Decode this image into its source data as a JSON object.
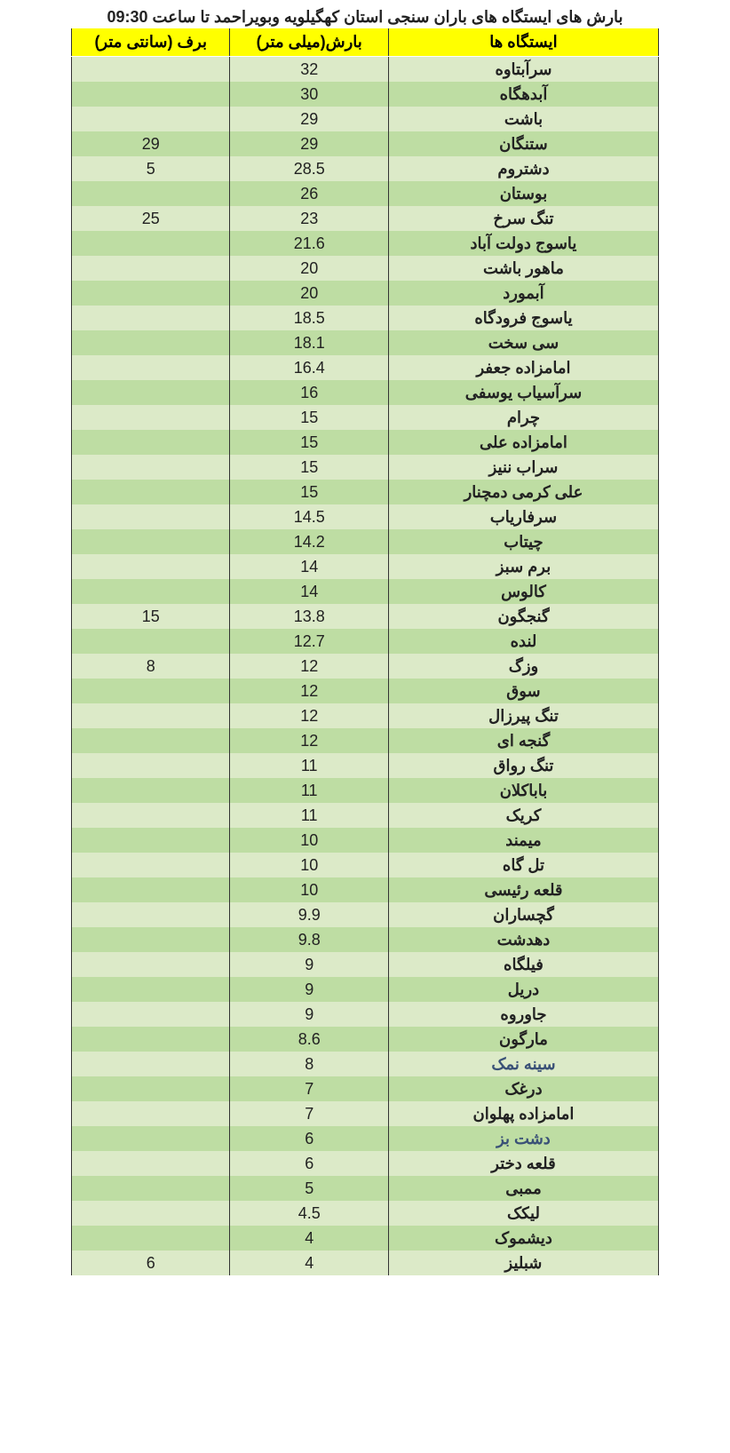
{
  "title": "بارش های ایستگاه های باران سنجی استان کهگیلویه وبویراحمد تا ساعت 09:30",
  "columns": {
    "station": "ایستگاه ها",
    "rain": "بارش(میلی متر)",
    "snow": "برف (سانتی متر)"
  },
  "style": {
    "header_bg": "#ffff00",
    "row_odd_bg": "#dceac8",
    "row_even_bg": "#bedda3",
    "border_color": "#333333",
    "text_color": "#222222",
    "muted_color": "#3a5177",
    "font_size": 18,
    "col_widths_pct": [
      46,
      27,
      27
    ]
  },
  "rows": [
    {
      "station": "سرآبتاوه",
      "rain": "32",
      "snow": ""
    },
    {
      "station": "آبدهگاه",
      "rain": "30",
      "snow": ""
    },
    {
      "station": "باشت",
      "rain": "29",
      "snow": ""
    },
    {
      "station": "ستنگان",
      "rain": "29",
      "snow": "29"
    },
    {
      "station": "دشتروم",
      "rain": "28.5",
      "snow": "5"
    },
    {
      "station": "بوستان",
      "rain": "26",
      "snow": ""
    },
    {
      "station": "تنگ سرخ",
      "rain": "23",
      "snow": "25"
    },
    {
      "station": "یاسوج دولت آباد",
      "rain": "21.6",
      "snow": ""
    },
    {
      "station": "ماهور باشت",
      "rain": "20",
      "snow": ""
    },
    {
      "station": "آبمورد",
      "rain": "20",
      "snow": ""
    },
    {
      "station": "یاسوج فرودگاه",
      "rain": "18.5",
      "snow": ""
    },
    {
      "station": "سی سخت",
      "rain": "18.1",
      "snow": ""
    },
    {
      "station": "امامزاده جعفر",
      "rain": "16.4",
      "snow": ""
    },
    {
      "station": "سرآسیاب یوسفی",
      "rain": "16",
      "snow": ""
    },
    {
      "station": "چرام",
      "rain": "15",
      "snow": ""
    },
    {
      "station": "امامزاده علی",
      "rain": "15",
      "snow": ""
    },
    {
      "station": "سراب ننیز",
      "rain": "15",
      "snow": ""
    },
    {
      "station": "علی کرمی دمچنار",
      "rain": "15",
      "snow": ""
    },
    {
      "station": "سرفاریاب",
      "rain": "14.5",
      "snow": ""
    },
    {
      "station": "چیتاب",
      "rain": "14.2",
      "snow": ""
    },
    {
      "station": "برم سبز",
      "rain": "14",
      "snow": ""
    },
    {
      "station": "کالوس",
      "rain": "14",
      "snow": ""
    },
    {
      "station": "گنجگون",
      "rain": "13.8",
      "snow": "15"
    },
    {
      "station": "لنده",
      "rain": "12.7",
      "snow": ""
    },
    {
      "station": "وزگ",
      "rain": "12",
      "snow": "8"
    },
    {
      "station": "سوق",
      "rain": "12",
      "snow": ""
    },
    {
      "station": "تنگ پیرزال",
      "rain": "12",
      "snow": ""
    },
    {
      "station": "گنجه ای",
      "rain": "12",
      "snow": ""
    },
    {
      "station": "تنگ رواق",
      "rain": "11",
      "snow": ""
    },
    {
      "station": "باباکلان",
      "rain": "11",
      "snow": ""
    },
    {
      "station": "کریک",
      "rain": "11",
      "snow": ""
    },
    {
      "station": "میمند",
      "rain": "10",
      "snow": ""
    },
    {
      "station": "تل گاه",
      "rain": "10",
      "snow": ""
    },
    {
      "station": "قلعه رئیسی",
      "rain": "10",
      "snow": ""
    },
    {
      "station": "گچساران",
      "rain": "9.9",
      "snow": ""
    },
    {
      "station": "دهدشت",
      "rain": "9.8",
      "snow": ""
    },
    {
      "station": "فیلگاه",
      "rain": "9",
      "snow": ""
    },
    {
      "station": "دریل",
      "rain": "9",
      "snow": ""
    },
    {
      "station": "جاوروه",
      "rain": "9",
      "snow": ""
    },
    {
      "station": "مارگون",
      "rain": "8.6",
      "snow": ""
    },
    {
      "station": "سینه نمک",
      "rain": "8",
      "snow": "",
      "muted": true
    },
    {
      "station": "درغک",
      "rain": "7",
      "snow": ""
    },
    {
      "station": "امامزاده پهلوان",
      "rain": "7",
      "snow": ""
    },
    {
      "station": "دشت بز",
      "rain": "6",
      "snow": "",
      "muted": true
    },
    {
      "station": "قلعه دختر",
      "rain": "6",
      "snow": ""
    },
    {
      "station": "ممبی",
      "rain": "5",
      "snow": ""
    },
    {
      "station": "لیکک",
      "rain": "4.5",
      "snow": ""
    },
    {
      "station": "دیشموک",
      "rain": "4",
      "snow": ""
    },
    {
      "station": "شبلیز",
      "rain": "4",
      "snow": "6"
    }
  ]
}
